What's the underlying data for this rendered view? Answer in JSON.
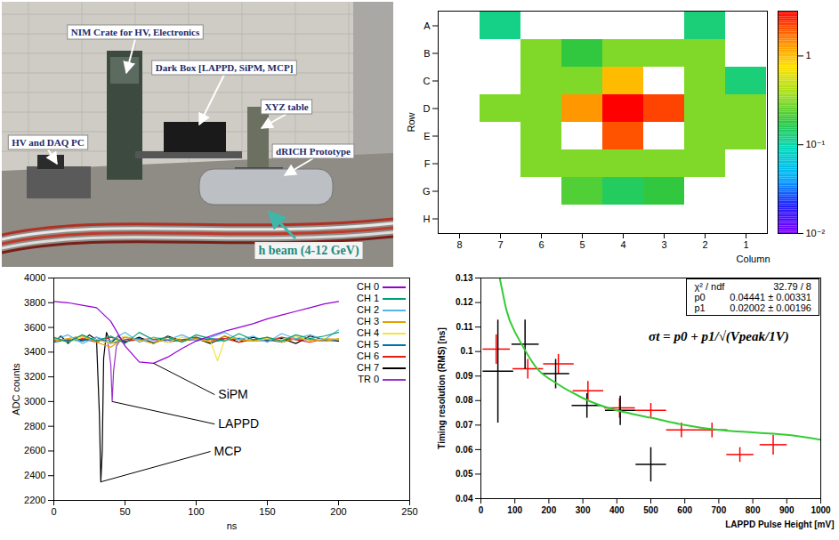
{
  "chart_data": [
    {
      "type": "photo",
      "annotations": [
        "NIM Crate for HV, Electronics",
        "Dark Box [LAPPD, SiPM, MCP]",
        "XYZ table",
        "HV and DAQ PC",
        "dRICH Prototype"
      ],
      "beam": "h beam (4-12 GeV)"
    },
    {
      "type": "heatmap",
      "x_label": "Column",
      "y_label": "Row",
      "columns": [
        8,
        7,
        6,
        5,
        4,
        3,
        2,
        1
      ],
      "rows": [
        "A",
        "B",
        "C",
        "D",
        "E",
        "F",
        "G",
        "H"
      ],
      "values": [
        [
          null,
          0.12,
          null,
          null,
          null,
          null,
          0.13,
          null
        ],
        [
          null,
          null,
          0.3,
          0.18,
          0.3,
          0.3,
          0.3,
          null
        ],
        [
          null,
          null,
          0.3,
          0.3,
          1.0,
          null,
          0.3,
          0.13
        ],
        [
          null,
          0.3,
          0.3,
          1.3,
          3.2,
          2.2,
          0.3,
          0.3
        ],
        [
          null,
          null,
          0.3,
          null,
          2.0,
          null,
          0.3,
          0.3
        ],
        [
          null,
          null,
          0.3,
          0.3,
          0.3,
          0.3,
          0.3,
          null
        ],
        [
          null,
          null,
          null,
          0.22,
          0.15,
          0.18,
          null,
          null
        ],
        [
          null,
          null,
          null,
          null,
          null,
          null,
          null,
          null
        ]
      ],
      "colorbar": {
        "range": [
          0.01,
          3.2
        ],
        "log": true,
        "ticks": [
          1,
          {
            "value": 0.1,
            "label": "10⁻¹"
          },
          {
            "value": 0.01,
            "label": "10⁻²"
          }
        ]
      }
    },
    {
      "type": "line",
      "x_label": "ns",
      "y_label": "ADC counts",
      "xlim": [
        0,
        250
      ],
      "xticks": [
        0,
        50,
        100,
        150,
        200,
        250
      ],
      "ylim": [
        2200,
        4000
      ],
      "yticks": [
        2200,
        2400,
        2600,
        2800,
        3000,
        3200,
        3400,
        3600,
        3800,
        4000
      ],
      "legend": "top-right",
      "series": [
        {
          "name": "CH 0",
          "color": "#9400d3",
          "x": [
            0,
            10,
            20,
            30,
            40,
            50,
            60,
            70,
            80,
            90,
            100,
            110,
            120,
            130,
            140,
            150,
            160,
            170,
            180,
            190,
            200
          ],
          "values": [
            3810,
            3800,
            3780,
            3760,
            3650,
            3450,
            3320,
            3310,
            3360,
            3430,
            3490,
            3530,
            3570,
            3600,
            3630,
            3670,
            3700,
            3730,
            3760,
            3790,
            3810
          ]
        },
        {
          "name": "CH 1",
          "color": "#009e73",
          "x": [
            0,
            10,
            20,
            30,
            40,
            50,
            60,
            70,
            80,
            90,
            100,
            110,
            120,
            130,
            140,
            150,
            160,
            170,
            180,
            190,
            200
          ],
          "values": [
            3520,
            3480,
            3540,
            3490,
            3530,
            3470,
            3560,
            3500,
            3520,
            3480,
            3540,
            3510,
            3490,
            3550,
            3500,
            3520,
            3490,
            3540,
            3510,
            3530,
            3560
          ]
        },
        {
          "name": "CH 2",
          "color": "#56b4e9",
          "x": [
            0,
            10,
            20,
            30,
            40,
            50,
            60,
            70,
            80,
            90,
            100,
            110,
            120,
            130,
            140,
            150,
            160,
            170,
            180,
            190,
            200
          ],
          "values": [
            3500,
            3540,
            3470,
            3520,
            3490,
            3560,
            3480,
            3520,
            3500,
            3540,
            3490,
            3520,
            3560,
            3500,
            3530,
            3480,
            3550,
            3510,
            3540,
            3500,
            3580
          ]
        },
        {
          "name": "CH 3",
          "color": "#e69f00",
          "x": [
            0,
            10,
            20,
            30,
            40,
            50,
            60,
            70,
            80,
            90,
            100,
            110,
            120,
            130,
            140,
            150,
            160,
            170,
            180,
            190,
            200
          ],
          "values": [
            3490,
            3510,
            3530,
            3480,
            3440,
            3520,
            3500,
            3470,
            3520,
            3490,
            3510,
            3480,
            3530,
            3500,
            3490,
            3520,
            3480,
            3510,
            3500,
            3490,
            3510
          ]
        },
        {
          "name": "CH 4",
          "color": "#f0e442",
          "x": [
            0,
            10,
            20,
            30,
            40,
            50,
            60,
            70,
            80,
            90,
            100,
            110,
            115,
            120,
            130,
            140,
            150,
            160,
            170,
            180,
            190,
            200
          ],
          "values": [
            3510,
            3480,
            3520,
            3500,
            3470,
            3530,
            3490,
            3510,
            3480,
            3520,
            3500,
            3490,
            3330,
            3500,
            3520,
            3490,
            3510,
            3500,
            3530,
            3490,
            3510,
            3500
          ]
        },
        {
          "name": "CH 5",
          "color": "#0072b2",
          "x": [
            0,
            10,
            20,
            30,
            40,
            50,
            60,
            70,
            80,
            90,
            100,
            110,
            120,
            130,
            140,
            150,
            160,
            170,
            180,
            190,
            200
          ],
          "values": [
            3480,
            3500,
            3490,
            3520,
            3470,
            3500,
            3510,
            3480,
            3500,
            3490,
            3520,
            3480,
            3500,
            3510,
            3490,
            3500,
            3480,
            3510,
            3500,
            3490,
            3500
          ]
        },
        {
          "name": "CH 6",
          "color": "#e51e10",
          "x": [
            0,
            10,
            20,
            30,
            40,
            50,
            60,
            70,
            80,
            90,
            100,
            110,
            120,
            130,
            140,
            150,
            160,
            170,
            180,
            190,
            200
          ],
          "values": [
            3500,
            3490,
            3510,
            3480,
            3520,
            3490,
            3500,
            3510,
            3480,
            3500,
            3520,
            3490,
            3510,
            3480,
            3500,
            3490,
            3520,
            3500,
            3480,
            3510,
            3500
          ]
        },
        {
          "name": "CH 7",
          "color": "#000000",
          "x": [
            0,
            5,
            10,
            15,
            20,
            25,
            30,
            32,
            33,
            34,
            35,
            37,
            40,
            45,
            50,
            60,
            70,
            80,
            90,
            100,
            110,
            120,
            130,
            140,
            150,
            160,
            170,
            180,
            190,
            200
          ],
          "values": [
            3480,
            3530,
            3470,
            3520,
            3490,
            3540,
            3500,
            2900,
            2350,
            2600,
            3350,
            3560,
            3470,
            3530,
            3480,
            3520,
            3470,
            3530,
            3490,
            3510,
            3470,
            3530,
            3480,
            3520,
            3490,
            3510,
            3470,
            3530,
            3500,
            3490
          ]
        },
        {
          "name": "TR 0",
          "color": "#9932cc",
          "x": [
            0,
            10,
            20,
            30,
            38,
            40,
            41,
            42,
            44,
            48,
            60,
            80,
            100,
            120,
            140,
            160,
            180,
            200
          ],
          "values": [
            3510,
            3495,
            3505,
            3500,
            3480,
            3300,
            3000,
            3250,
            3450,
            3520,
            3505,
            3495,
            3500,
            3510,
            3495,
            3505,
            3500,
            3500
          ]
        }
      ],
      "annotations": [
        {
          "text": "SiPM",
          "x": 113,
          "y": 3056,
          "series": "CH 0"
        },
        {
          "text": "LAPPD",
          "x": 113,
          "y": 2818,
          "series": "TR 0"
        },
        {
          "text": "MCP",
          "x": 110,
          "y": 2596,
          "series": "CH 7"
        }
      ]
    },
    {
      "type": "scatter",
      "x_label": "LAPPD Pulse Height [mV]",
      "y_label": "Timing resolution (RMS) [ns]",
      "xlim": [
        0,
        1000
      ],
      "xticks": [
        0,
        100,
        200,
        300,
        400,
        500,
        600,
        700,
        800,
        900,
        1000
      ],
      "ylim": [
        0.04,
        0.13
      ],
      "yticks": [
        0.04,
        0.05,
        0.06,
        0.07,
        0.08,
        0.09,
        0.1,
        0.11,
        0.12,
        0.13
      ],
      "series": [
        {
          "color": "#ff0000",
          "x": [
            45,
            138,
            228,
            315,
            408,
            500,
            590,
            680,
            762,
            860
          ],
          "values": [
            0.101,
            0.093,
            0.095,
            0.084,
            0.077,
            0.076,
            0.068,
            0.068,
            0.058,
            0.062
          ],
          "xerr": [
            40,
            45,
            45,
            45,
            45,
            45,
            45,
            45,
            40,
            40
          ],
          "yerr": [
            0.006,
            0.004,
            0.004,
            0.004,
            0.004,
            0.003,
            0.003,
            0.003,
            0.003,
            0.004
          ]
        },
        {
          "color": "#000000",
          "x": [
            50,
            130,
            220,
            312,
            410,
            500
          ],
          "values": [
            0.092,
            0.103,
            0.091,
            0.078,
            0.076,
            0.054
          ],
          "xerr": [
            45,
            40,
            40,
            45,
            45,
            45
          ],
          "yerr": [
            0.021,
            0.01,
            0.006,
            0.005,
            0.006,
            0.007
          ]
        }
      ],
      "fit": {
        "color": "#33cc33",
        "x": [
          50,
          75,
          100,
          150,
          200,
          300,
          400,
          500,
          600,
          700,
          800,
          900,
          1000
        ],
        "values": [
          0.134,
          0.117,
          0.108,
          0.096,
          0.089,
          0.081,
          0.076,
          0.073,
          0.07,
          0.068,
          0.067,
          0.066,
          0.064
        ]
      },
      "stats": [
        {
          "name": "χ² / ndf",
          "value": "32.79 / 8"
        },
        {
          "name": "p0",
          "value": "0.04441 ± 0.00331"
        },
        {
          "name": "p1",
          "value": "0.02002 ± 0.00196"
        }
      ],
      "annotations": [
        {
          "text": "σt = p0 + p1/√(Vpeak/1V)",
          "x": 700,
          "y": 0.106
        }
      ]
    }
  ]
}
